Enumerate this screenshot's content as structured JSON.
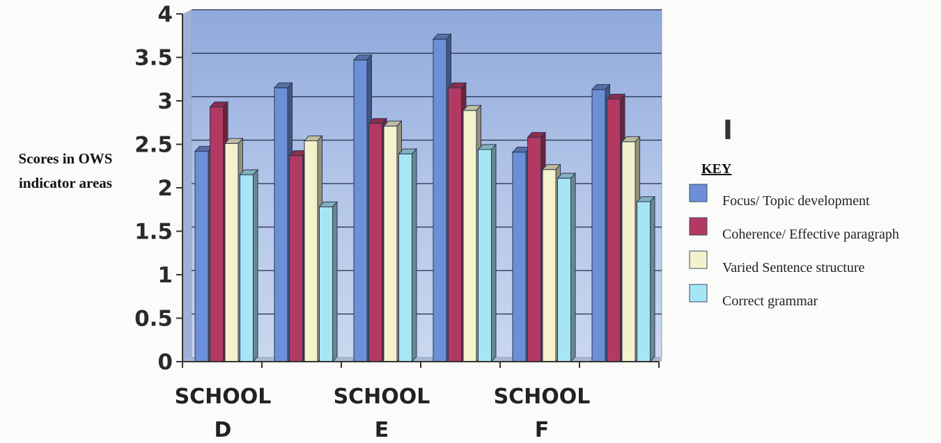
{
  "chart_data": {
    "type": "bar",
    "ylabel_lines": [
      "Scores in OWS",
      "indicator areas"
    ],
    "ylim": [
      0,
      4
    ],
    "yticks": [
      "0",
      "0.5",
      "1",
      "1.5",
      "2",
      "2.5",
      "3",
      "3.5",
      "4"
    ],
    "category_labels": [
      {
        "line1": "SCHOOL",
        "line2": "D"
      },
      {
        "line1": "SCHOOL",
        "line2": "E"
      },
      {
        "line1": "SCHOOL",
        "line2": "F"
      }
    ],
    "groups": 6,
    "legend_title": "KEY",
    "stray_mark": "I",
    "grid": true,
    "legend_position": "right",
    "series": [
      {
        "name": "Focus/ Topic development",
        "color": "#6c8fd8",
        "values": [
          2.42,
          3.15,
          3.47,
          3.71,
          2.41,
          3.13
        ]
      },
      {
        "name": "Coherence/ Effective paragraph",
        "color": "#b23a62",
        "values": [
          2.93,
          2.37,
          2.74,
          3.15,
          2.58,
          3.02
        ]
      },
      {
        "name": "Varied Sentence structure",
        "color": "#f4f2cc",
        "values": [
          2.51,
          2.54,
          2.71,
          2.89,
          2.21,
          2.53
        ]
      },
      {
        "name": "Correct grammar",
        "color": "#a6e6f4",
        "values": [
          2.15,
          1.78,
          2.39,
          2.44,
          2.11,
          1.84
        ]
      }
    ]
  }
}
